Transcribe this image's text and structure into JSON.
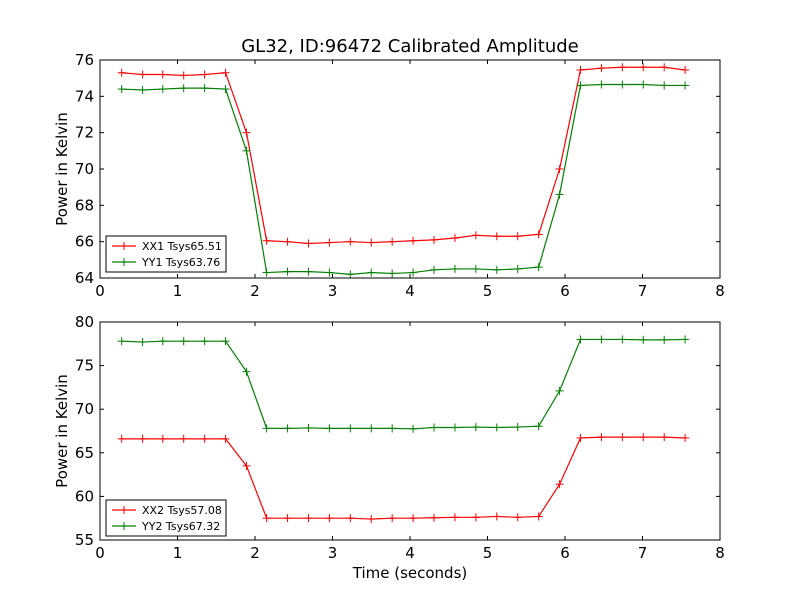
{
  "chart_data": [
    {
      "type": "line",
      "title": "GL32, ID:96472 Calibrated Amplitude",
      "xlabel": "",
      "ylabel": "Power in Kelvin",
      "xlim": [
        0,
        8
      ],
      "ylim": [
        64,
        76
      ],
      "xticks": [
        0,
        1,
        2,
        3,
        4,
        5,
        6,
        7,
        8
      ],
      "yticks": [
        64,
        66,
        68,
        70,
        72,
        74,
        76
      ],
      "grid": false,
      "legend_position": "lower-left",
      "series": [
        {
          "name": "XX1 Tsys65.51",
          "color": "#ff0000",
          "x": [
            0.28,
            0.55,
            0.81,
            1.08,
            1.35,
            1.62,
            1.89,
            2.15,
            2.42,
            2.69,
            2.96,
            3.23,
            3.5,
            3.77,
            4.04,
            4.31,
            4.58,
            4.85,
            5.12,
            5.39,
            5.66,
            5.93,
            6.2,
            6.47,
            6.74,
            7.01,
            7.28,
            7.55
          ],
          "y": [
            75.3,
            75.2,
            75.2,
            75.15,
            75.2,
            75.3,
            72.0,
            66.05,
            66.0,
            65.9,
            65.95,
            66.0,
            65.95,
            66.0,
            66.05,
            66.1,
            66.2,
            66.35,
            66.3,
            66.3,
            66.4,
            70.0,
            75.45,
            75.55,
            75.6,
            75.6,
            75.6,
            75.45
          ]
        },
        {
          "name": "YY1 Tsys63.76",
          "color": "#008000",
          "x": [
            0.28,
            0.55,
            0.81,
            1.08,
            1.35,
            1.62,
            1.89,
            2.15,
            2.42,
            2.69,
            2.96,
            3.23,
            3.5,
            3.77,
            4.04,
            4.31,
            4.58,
            4.85,
            5.12,
            5.39,
            5.66,
            5.93,
            6.2,
            6.47,
            6.74,
            7.01,
            7.28,
            7.55
          ],
          "y": [
            74.4,
            74.35,
            74.4,
            74.45,
            74.45,
            74.4,
            71.0,
            64.3,
            64.35,
            64.35,
            64.3,
            64.2,
            64.3,
            64.25,
            64.3,
            64.45,
            64.5,
            64.5,
            64.45,
            64.5,
            64.6,
            68.6,
            74.6,
            74.65,
            74.65,
            74.65,
            74.6,
            74.6
          ]
        }
      ]
    },
    {
      "type": "line",
      "title": "",
      "xlabel": "Time (seconds)",
      "ylabel": "Power in Kelvin",
      "xlim": [
        0,
        8
      ],
      "ylim": [
        55,
        80
      ],
      "xticks": [
        0,
        1,
        2,
        3,
        4,
        5,
        6,
        7,
        8
      ],
      "yticks": [
        55,
        60,
        65,
        70,
        75,
        80
      ],
      "grid": false,
      "legend_position": "lower-left",
      "series": [
        {
          "name": "XX2 Tsys57.08",
          "color": "#ff0000",
          "x": [
            0.28,
            0.55,
            0.81,
            1.08,
            1.35,
            1.62,
            1.89,
            2.15,
            2.42,
            2.69,
            2.96,
            3.23,
            3.5,
            3.77,
            4.04,
            4.31,
            4.58,
            4.85,
            5.12,
            5.39,
            5.66,
            5.93,
            6.2,
            6.47,
            6.74,
            7.01,
            7.28,
            7.55
          ],
          "y": [
            66.6,
            66.6,
            66.6,
            66.6,
            66.6,
            66.6,
            63.5,
            57.5,
            57.5,
            57.5,
            57.5,
            57.5,
            57.4,
            57.5,
            57.5,
            57.55,
            57.6,
            57.6,
            57.7,
            57.6,
            57.7,
            61.4,
            66.7,
            66.8,
            66.8,
            66.8,
            66.8,
            66.7
          ]
        },
        {
          "name": "YY2 Tsys67.32",
          "color": "#008000",
          "x": [
            0.28,
            0.55,
            0.81,
            1.08,
            1.35,
            1.62,
            1.89,
            2.15,
            2.42,
            2.69,
            2.96,
            3.23,
            3.5,
            3.77,
            4.04,
            4.31,
            4.58,
            4.85,
            5.12,
            5.39,
            5.66,
            5.93,
            6.2,
            6.47,
            6.74,
            7.01,
            7.28,
            7.55
          ],
          "y": [
            77.8,
            77.7,
            77.8,
            77.8,
            77.8,
            77.8,
            74.3,
            67.8,
            67.8,
            67.85,
            67.8,
            67.8,
            67.8,
            67.8,
            67.75,
            67.9,
            67.9,
            67.95,
            67.9,
            67.95,
            68.05,
            72.1,
            78.0,
            78.0,
            78.0,
            77.95,
            77.95,
            78.0
          ]
        }
      ]
    }
  ]
}
